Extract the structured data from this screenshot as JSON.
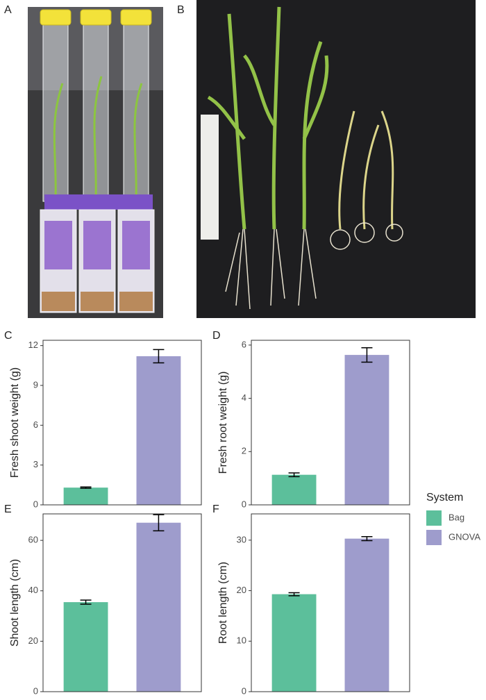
{
  "photos": [
    {
      "label": "A"
    },
    {
      "label": "B"
    }
  ],
  "legend": {
    "title": "System",
    "entries": [
      {
        "name": "Bag",
        "color": "#5cbf9b"
      },
      {
        "name": "GNOVA",
        "color": "#9e9ccc"
      }
    ]
  },
  "chart_data": [
    {
      "type": "bar",
      "panel": "C",
      "y_label": "Fresh shoot weight (g)",
      "values": [
        1.3,
        11.2
      ],
      "errors": [
        0.05,
        0.5
      ],
      "ylim": [
        0,
        12.4
      ],
      "yticks": [
        0,
        3,
        6,
        9,
        12
      ]
    },
    {
      "type": "bar",
      "panel": "D",
      "y_label": "Fresh root weight (g)",
      "values": [
        1.13,
        5.63
      ],
      "errors": [
        0.07,
        0.27
      ],
      "ylim": [
        0,
        6.18
      ],
      "yticks": [
        0,
        2,
        4,
        6
      ]
    },
    {
      "type": "bar",
      "panel": "E",
      "y_label": "Shoot length (cm)",
      "values": [
        35.5,
        67
      ],
      "errors": [
        0.8,
        3.2
      ],
      "ylim": [
        0,
        70.5
      ],
      "yticks": [
        0,
        20,
        40,
        60
      ]
    },
    {
      "type": "bar",
      "panel": "F",
      "y_label": "Root length (cm)",
      "values": [
        19.3,
        30.3
      ],
      "errors": [
        0.3,
        0.4
      ],
      "ylim": [
        0,
        35.2
      ],
      "yticks": [
        0,
        10,
        20,
        30
      ]
    }
  ]
}
